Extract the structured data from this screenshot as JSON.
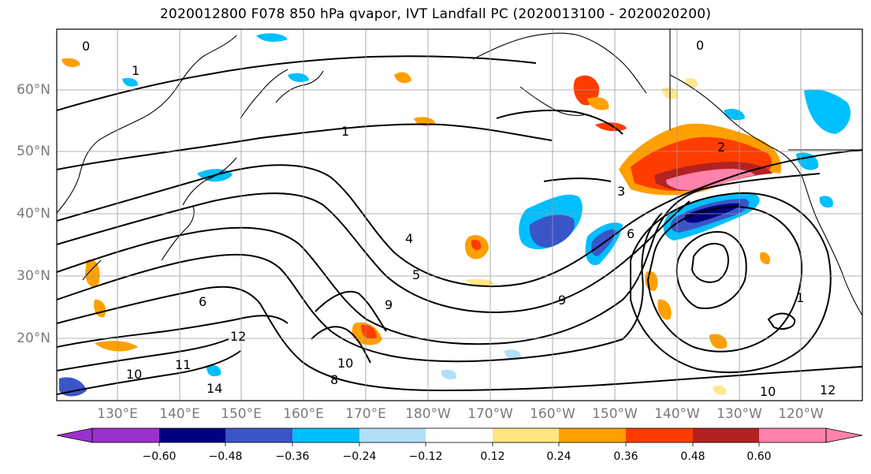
{
  "title": "2020012800 F078 850 hPa qvapor, IVT Landfall PC (2020013100 - 2020020200)",
  "map": {
    "lat_labels": [
      "60°N",
      "50°N",
      "40°N",
      "30°N",
      "20°N"
    ],
    "lon_labels": [
      "130°E",
      "140°E",
      "150°E",
      "160°E",
      "170°E",
      "180°W",
      "170°W",
      "160°W",
      "150°W",
      "140°W",
      "130°W",
      "120°W"
    ],
    "contour_labels": [
      "0",
      "0",
      "1",
      "1",
      "1",
      "2",
      "3",
      "4",
      "5",
      "6",
      "6",
      "8",
      "9",
      "9",
      "10",
      "10",
      "10",
      "11",
      "12",
      "12",
      "14"
    ],
    "fill_colors": {
      "strong_negative": "#000080",
      "negative": "#3a55c8",
      "weak_negative": "#00bfff",
      "faint_negative": "#b0e0f8",
      "faint_positive": "#ffe680",
      "positive": "#ff9f00",
      "strong_positive": "#ff3c00",
      "very_strong_positive": "#b22222",
      "extreme_positive": "#ff82ab"
    }
  },
  "colorbar": {
    "ticks": [
      "−0.60",
      "−0.48",
      "−0.36",
      "−0.24",
      "−0.12",
      "0.12",
      "0.24",
      "0.36",
      "0.48",
      "0.60"
    ],
    "colors": [
      "#9932cc",
      "#000080",
      "#3a55c8",
      "#00bfff",
      "#b0e0f8",
      "#ffffff",
      "#ffe680",
      "#ff9f00",
      "#ff3c00",
      "#b22222",
      "#ff82ab"
    ]
  }
}
